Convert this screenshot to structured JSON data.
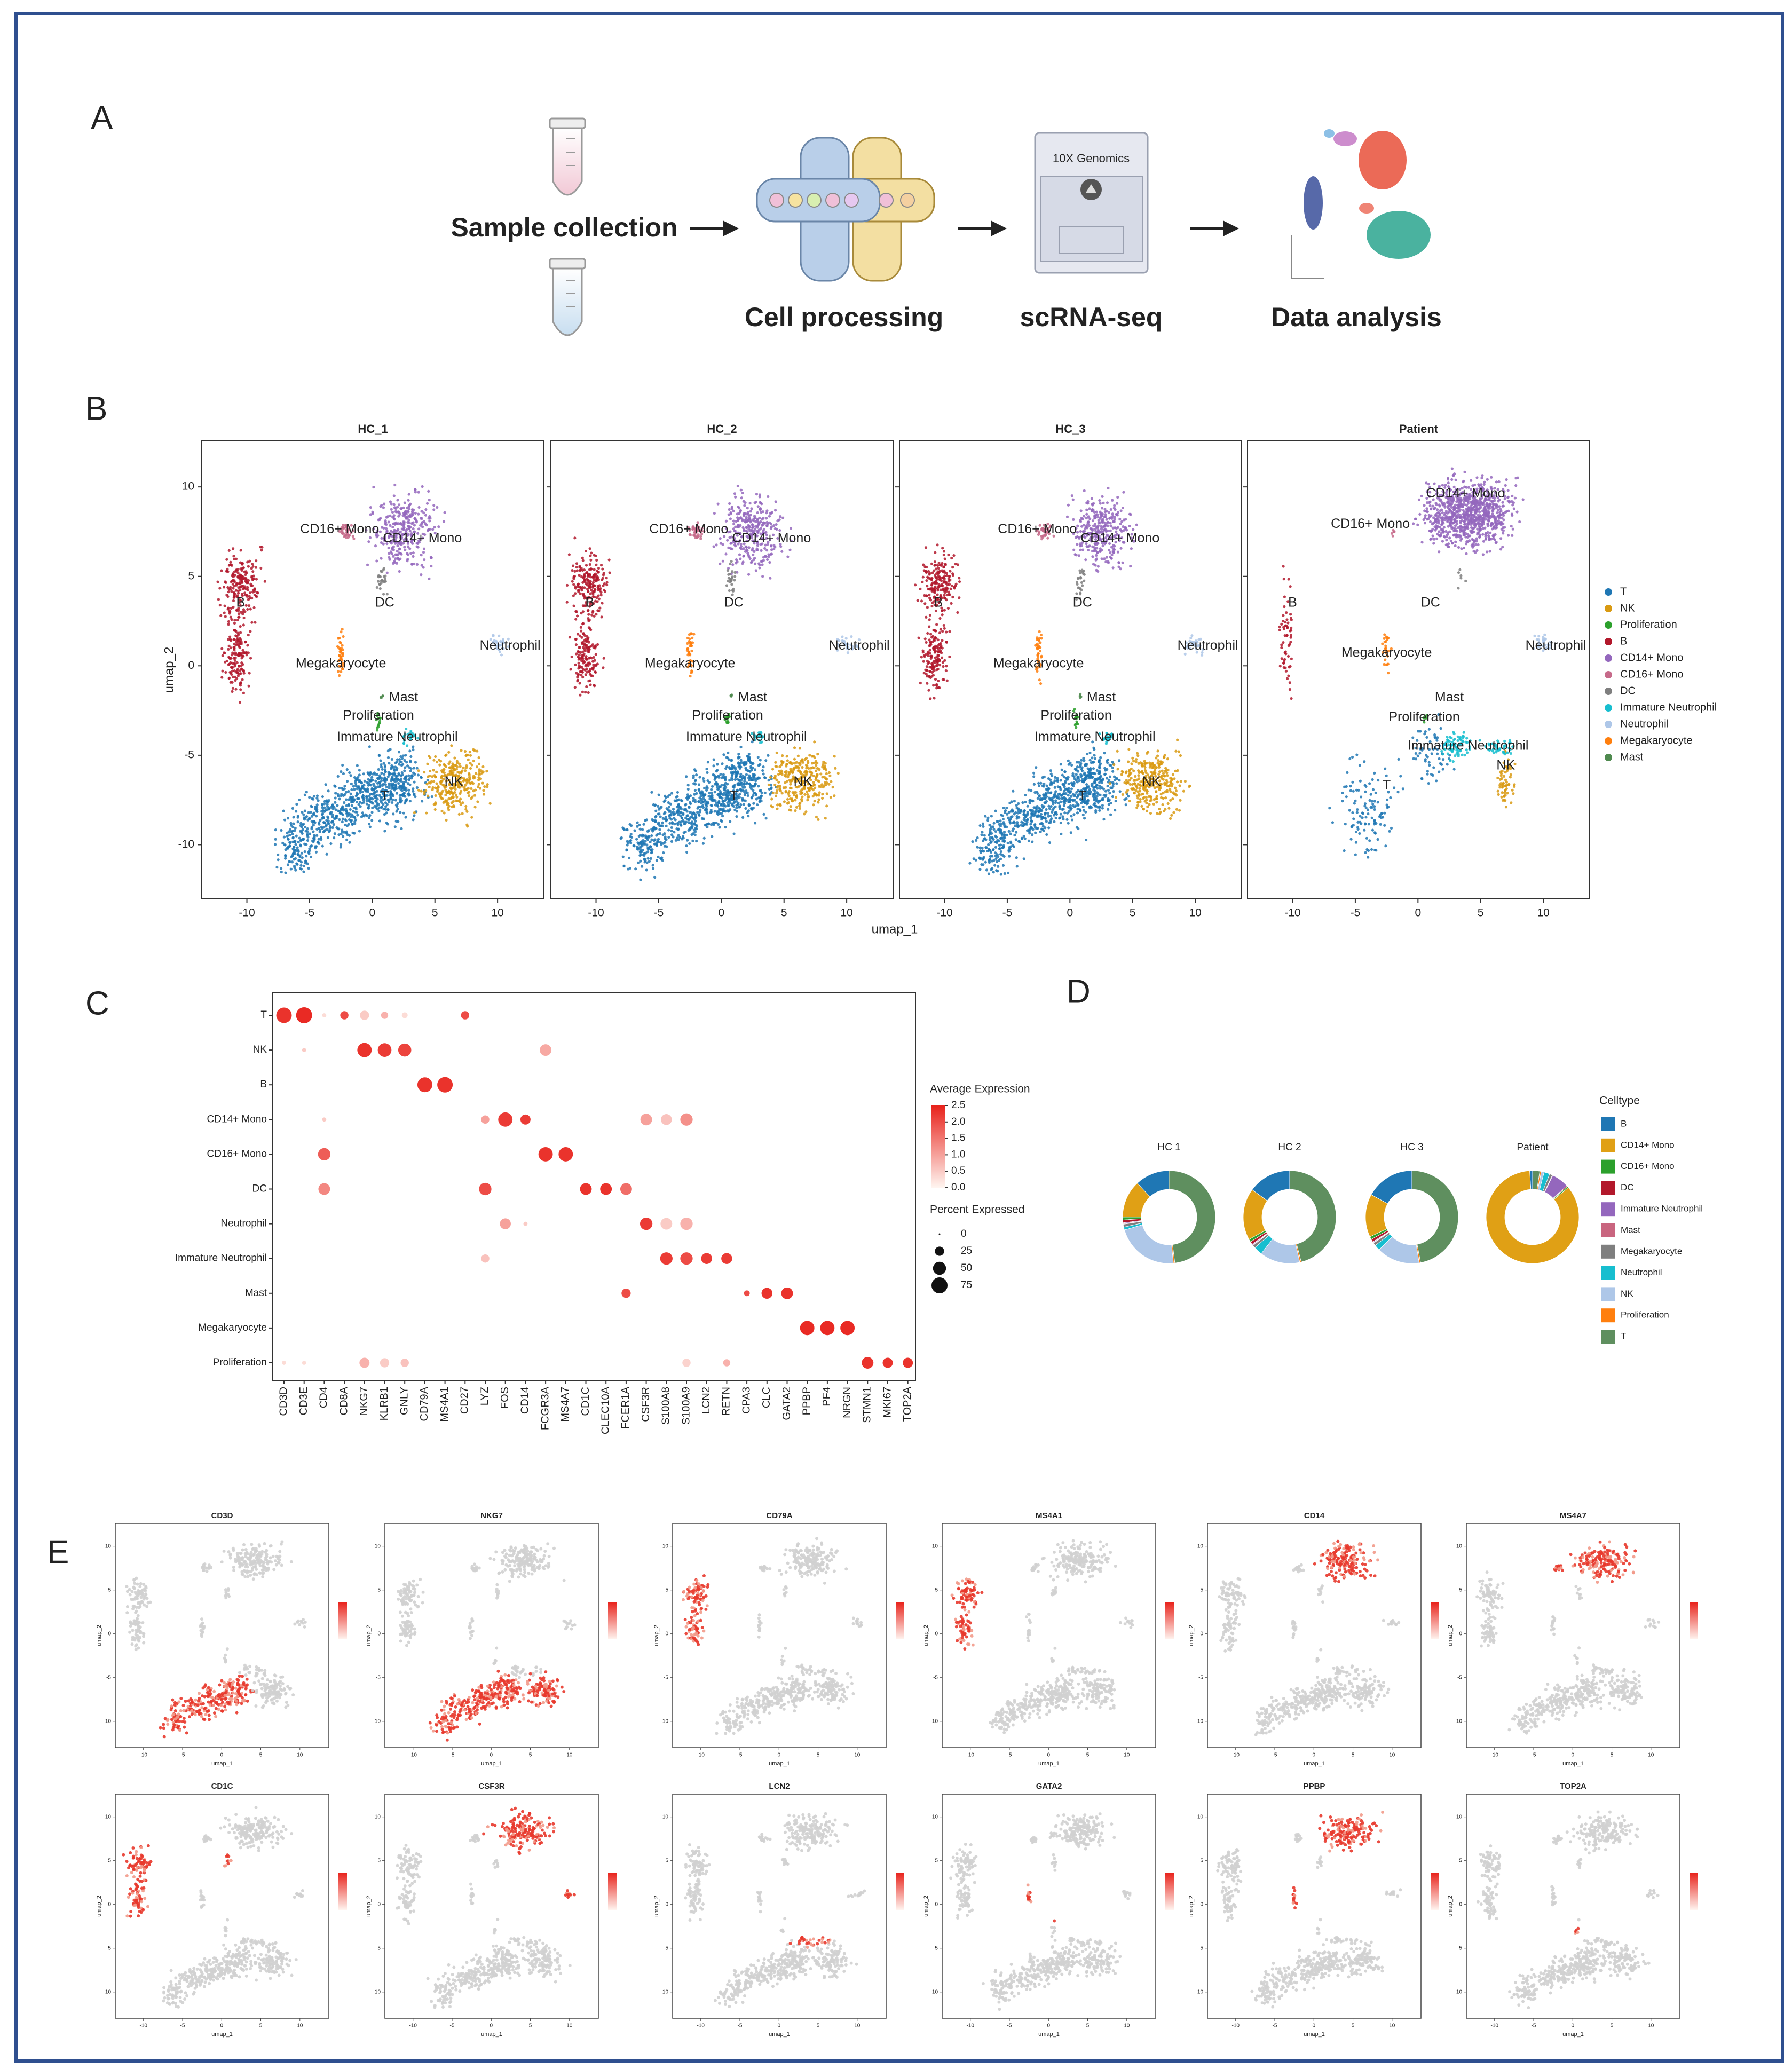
{
  "panel_a": {
    "label": "A",
    "steps": [
      "Sample collection",
      "Cell processing",
      "scRNA-seq",
      "Data analysis"
    ],
    "kit_label": "10X Genomics"
  },
  "panel_b": {
    "label": "B",
    "titles": [
      "HC_1",
      "HC_2",
      "HC_3",
      "Patient"
    ],
    "xlabel": "umap_1",
    "ylabel": "umap_2",
    "xlim": [
      -13.6,
      13.7
    ],
    "ylim": [
      -13,
      12.6
    ],
    "xticks": [
      -10,
      -5,
      0,
      5,
      10
    ],
    "yticks": [
      -10,
      -5,
      0,
      5,
      10
    ],
    "legend": [
      {
        "name": "T",
        "color": "#1f77b4"
      },
      {
        "name": "NK",
        "color": "#d99a12"
      },
      {
        "name": "Proliferation",
        "color": "#2ca02c"
      },
      {
        "name": "B",
        "color": "#b2182b"
      },
      {
        "name": "CD14+ Mono",
        "color": "#9467bd"
      },
      {
        "name": "CD16+ Mono",
        "color": "#c66a8a"
      },
      {
        "name": "DC",
        "color": "#7f7f7f"
      },
      {
        "name": "Immature Neutrophil",
        "color": "#17becf"
      },
      {
        "name": "Neutrophil",
        "color": "#aec7e8"
      },
      {
        "name": "Megakaryocyte",
        "color": "#ff7f0e"
      },
      {
        "name": "Mast",
        "color": "#4f8a4f"
      }
    ]
  },
  "panel_c": {
    "label": "C",
    "cell_types": [
      "T",
      "NK",
      "B",
      "CD14+ Mono",
      "CD16+ Mono",
      "DC",
      "Neutrophil",
      "Immature Neutrophil",
      "Mast",
      "Megakaryocyte",
      "Proliferation"
    ],
    "genes": [
      "CD3D",
      "CD3E",
      "CD4",
      "CD8A",
      "NKG7",
      "KLRB1",
      "GNLY",
      "CD79A",
      "MS4A1",
      "CD27",
      "LYZ",
      "FOS",
      "CD14",
      "FCGR3A",
      "MS4A7",
      "CD1C",
      "CLEC10A",
      "FCER1A",
      "CSF3R",
      "S100A8",
      "S100A9",
      "LCN2",
      "RETN",
      "CPA3",
      "CLC",
      "GATA2",
      "PPBP",
      "PF4",
      "NRGN",
      "STMN1",
      "MKI67",
      "TOP2A"
    ],
    "rows": [
      {
        "dots": [
          {
            "gene": "CD3D",
            "pct": 70,
            "expr": 2.3
          },
          {
            "gene": "CD3E",
            "pct": 75,
            "expr": 2.4
          },
          {
            "gene": "CD4",
            "pct": 5,
            "expr": 0.3
          },
          {
            "gene": "CD8A",
            "pct": 20,
            "expr": 2.0
          },
          {
            "gene": "NKG7",
            "pct": 25,
            "expr": 0.5
          },
          {
            "gene": "KLRB1",
            "pct": 15,
            "expr": 0.8
          },
          {
            "gene": "GNLY",
            "pct": 10,
            "expr": 0.3
          },
          {
            "gene": "CD27",
            "pct": 20,
            "expr": 2.0
          }
        ]
      },
      {
        "dots": [
          {
            "gene": "CD3E",
            "pct": 5,
            "expr": 0.5
          },
          {
            "gene": "NKG7",
            "pct": 60,
            "expr": 2.3
          },
          {
            "gene": "KLRB1",
            "pct": 55,
            "expr": 2.2
          },
          {
            "gene": "GNLY",
            "pct": 50,
            "expr": 2.1
          },
          {
            "gene": "FCGR3A",
            "pct": 40,
            "expr": 0.9
          }
        ]
      },
      {
        "dots": [
          {
            "gene": "CD79A",
            "pct": 65,
            "expr": 2.3
          },
          {
            "gene": "MS4A1",
            "pct": 70,
            "expr": 2.3
          }
        ]
      },
      {
        "dots": [
          {
            "gene": "CD4",
            "pct": 5,
            "expr": 0.5
          },
          {
            "gene": "LYZ",
            "pct": 20,
            "expr": 1.0
          },
          {
            "gene": "FOS",
            "pct": 60,
            "expr": 2.2
          },
          {
            "gene": "CD14",
            "pct": 30,
            "expr": 2.2
          },
          {
            "gene": "CSF3R",
            "pct": 40,
            "expr": 1.0
          },
          {
            "gene": "S100A8",
            "pct": 35,
            "expr": 0.6
          },
          {
            "gene": "S100A9",
            "pct": 45,
            "expr": 1.2
          }
        ]
      },
      {
        "dots": [
          {
            "gene": "CD4",
            "pct": 45,
            "expr": 1.8
          },
          {
            "gene": "FCGR3A",
            "pct": 60,
            "expr": 2.3
          },
          {
            "gene": "MS4A7",
            "pct": 60,
            "expr": 2.3
          }
        ]
      },
      {
        "dots": [
          {
            "gene": "CD4",
            "pct": 40,
            "expr": 1.3
          },
          {
            "gene": "LYZ",
            "pct": 45,
            "expr": 2.0
          },
          {
            "gene": "CD1C",
            "pct": 40,
            "expr": 2.3
          },
          {
            "gene": "CLEC10A",
            "pct": 40,
            "expr": 2.3
          },
          {
            "gene": "FCER1A",
            "pct": 40,
            "expr": 1.6
          }
        ]
      },
      {
        "dots": [
          {
            "gene": "FOS",
            "pct": 35,
            "expr": 1.0
          },
          {
            "gene": "CD14",
            "pct": 5,
            "expr": 0.5
          },
          {
            "gene": "CSF3R",
            "pct": 45,
            "expr": 2.2
          },
          {
            "gene": "S100A8",
            "pct": 40,
            "expr": 0.5
          },
          {
            "gene": "S100A9",
            "pct": 45,
            "expr": 0.8
          }
        ]
      },
      {
        "dots": [
          {
            "gene": "LYZ",
            "pct": 20,
            "expr": 0.6
          },
          {
            "gene": "S100A8",
            "pct": 45,
            "expr": 2.2
          },
          {
            "gene": "S100A9",
            "pct": 45,
            "expr": 2.0
          },
          {
            "gene": "LCN2",
            "pct": 35,
            "expr": 2.2
          },
          {
            "gene": "RETN",
            "pct": 35,
            "expr": 2.2
          }
        ]
      },
      {
        "dots": [
          {
            "gene": "FCER1A",
            "pct": 25,
            "expr": 2.0
          },
          {
            "gene": "CPA3",
            "pct": 10,
            "expr": 2.0
          },
          {
            "gene": "CLC",
            "pct": 35,
            "expr": 2.3
          },
          {
            "gene": "GATA2",
            "pct": 40,
            "expr": 2.3
          }
        ]
      },
      {
        "dots": [
          {
            "gene": "PPBP",
            "pct": 60,
            "expr": 2.4
          },
          {
            "gene": "PF4",
            "pct": 60,
            "expr": 2.4
          },
          {
            "gene": "NRGN",
            "pct": 60,
            "expr": 2.4
          }
        ]
      },
      {
        "dots": [
          {
            "gene": "CD3D",
            "pct": 5,
            "expr": 0.3
          },
          {
            "gene": "CD3E",
            "pct": 5,
            "expr": 0.3
          },
          {
            "gene": "NKG7",
            "pct": 30,
            "expr": 0.8
          },
          {
            "gene": "KLRB1",
            "pct": 25,
            "expr": 0.5
          },
          {
            "gene": "GNLY",
            "pct": 20,
            "expr": 0.6
          },
          {
            "gene": "S100A9",
            "pct": 20,
            "expr": 0.4
          },
          {
            "gene": "RETN",
            "pct": 15,
            "expr": 0.8
          },
          {
            "gene": "STMN1",
            "pct": 40,
            "expr": 2.3
          },
          {
            "gene": "MKI67",
            "pct": 30,
            "expr": 2.3
          },
          {
            "gene": "TOP2A",
            "pct": 30,
            "expr": 2.3
          }
        ]
      }
    ],
    "expr_legend": {
      "title": "Average Expression",
      "lim": [
        0,
        2.5
      ],
      "ticks": [
        {
          "value": 0,
          "label": "0.0"
        },
        0.5,
        {
          "value": 1,
          "label": "1.0"
        },
        1.5,
        {
          "value": 2,
          "label": "2.0"
        },
        2.5
      ]
    },
    "pct_legend": {
      "title": "Percent Expressed",
      "values": [
        0,
        25,
        50,
        75
      ]
    }
  },
  "panel_d": {
    "label": "D",
    "legend_title": "Celltype",
    "celltypes": [
      {
        "name": "B",
        "color": "#1f77b4"
      },
      {
        "name": "CD14+ Mono",
        "color": "#e0a015"
      },
      {
        "name": "CD16+ Mono",
        "color": "#2ca02c"
      },
      {
        "name": "DC",
        "color": "#b2182b"
      },
      {
        "name": "Immature Neutrophil",
        "color": "#9467bd"
      },
      {
        "name": "Mast",
        "color": "#c9657f"
      },
      {
        "name": "Megakaryocyte",
        "color": "#7f7f7f"
      },
      {
        "name": "Neutrophil",
        "color": "#17becf"
      },
      {
        "name": "NK",
        "color": "#aec7e8"
      },
      {
        "name": "Proliferation",
        "color": "#ff7f0e"
      },
      {
        "name": "T",
        "color": "#5f8f5f"
      }
    ],
    "donuts": [
      {
        "title": "HC 1",
        "values": [
          12,
          13,
          1,
          1,
          0.3,
          0.2,
          1,
          1,
          22,
          0.5,
          48
        ]
      },
      {
        "title": "HC 2",
        "values": [
          15,
          18,
          1,
          1,
          0.3,
          0.2,
          1,
          3,
          14,
          0.5,
          46
        ]
      },
      {
        "title": "HC 3",
        "values": [
          17,
          15,
          1,
          1,
          0.3,
          0.2,
          1,
          2,
          15,
          0.5,
          47
        ]
      },
      {
        "title": "Patient",
        "values": [
          1,
          85,
          0.5,
          0.3,
          6,
          0.2,
          1,
          2,
          1,
          0.5,
          2.5
        ]
      }
    ]
  },
  "panel_e": {
    "label": "E",
    "genes": [
      "CD3D",
      "NKG7",
      "CD79A",
      "MS4A1",
      "CD14",
      "MS4A7",
      "CD1C",
      "CSF3R",
      "LCN2",
      "GATA2",
      "PPBP",
      "TOP2A"
    ]
  }
}
